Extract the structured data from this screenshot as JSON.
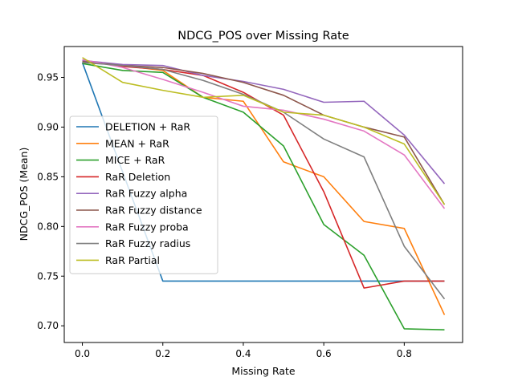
{
  "chart_data": {
    "type": "line",
    "title": "NDCG_POS over Missing Rate",
    "xlabel": "Missing Rate",
    "ylabel": "NDCG_POS (Mean)",
    "xlim": [
      -0.045,
      0.945
    ],
    "ylim": [
      0.6832,
      0.9811
    ],
    "xticks": [
      0.0,
      0.2,
      0.4,
      0.6,
      0.8
    ],
    "xtick_labels": [
      "0.0",
      "0.2",
      "0.4",
      "0.6",
      "0.8"
    ],
    "yticks": [
      0.7,
      0.75,
      0.8,
      0.85,
      0.9,
      0.95
    ],
    "ytick_labels": [
      "0.70",
      "0.75",
      "0.80",
      "0.85",
      "0.90",
      "0.95"
    ],
    "grid": false,
    "legend_position": "center-left",
    "x": [
      0.0,
      0.1,
      0.2,
      0.3,
      0.4,
      0.5,
      0.6,
      0.7,
      0.8,
      0.9
    ],
    "series": [
      {
        "name": "DELETION + RaR",
        "color": "#1f77b4",
        "values": [
          0.965,
          null,
          0.745,
          0.745,
          0.745,
          0.745,
          0.745,
          0.745,
          0.745,
          0.745
        ]
      },
      {
        "name": "MEAN + RaR",
        "color": "#ff7f0e",
        "values": [
          0.966,
          0.962,
          0.957,
          0.93,
          0.926,
          0.865,
          0.85,
          0.805,
          0.798,
          0.711
        ]
      },
      {
        "name": "MICE + RaR",
        "color": "#2ca02c",
        "values": [
          0.964,
          0.957,
          0.955,
          0.93,
          0.915,
          0.881,
          0.802,
          0.771,
          0.697,
          0.696
        ]
      },
      {
        "name": "RaR Deletion",
        "color": "#d62728",
        "values": [
          0.967,
          0.961,
          0.958,
          0.952,
          0.935,
          0.912,
          0.835,
          0.738,
          0.745,
          0.745
        ]
      },
      {
        "name": "RaR Fuzzy alpha",
        "color": "#9467bd",
        "values": [
          0.967,
          0.963,
          0.962,
          0.952,
          0.946,
          0.938,
          0.925,
          0.926,
          0.892,
          0.843
        ]
      },
      {
        "name": "RaR Fuzzy distance",
        "color": "#8c564b",
        "values": [
          0.966,
          0.962,
          0.96,
          0.954,
          0.945,
          0.932,
          0.912,
          0.9,
          0.89,
          0.822
        ]
      },
      {
        "name": "RaR Fuzzy proba",
        "color": "#e377c2",
        "values": [
          0.968,
          0.96,
          0.948,
          0.935,
          0.921,
          0.917,
          0.908,
          0.896,
          0.872,
          0.818
        ]
      },
      {
        "name": "RaR Fuzzy radius",
        "color": "#7f7f7f",
        "values": [
          0.965,
          0.962,
          0.958,
          0.947,
          0.933,
          0.915,
          0.888,
          0.87,
          0.78,
          0.727
        ]
      },
      {
        "name": "RaR Partial",
        "color": "#bcbd22",
        "values": [
          0.97,
          0.945,
          0.937,
          0.93,
          0.932,
          0.915,
          0.912,
          0.9,
          0.883,
          0.822
        ]
      }
    ]
  }
}
